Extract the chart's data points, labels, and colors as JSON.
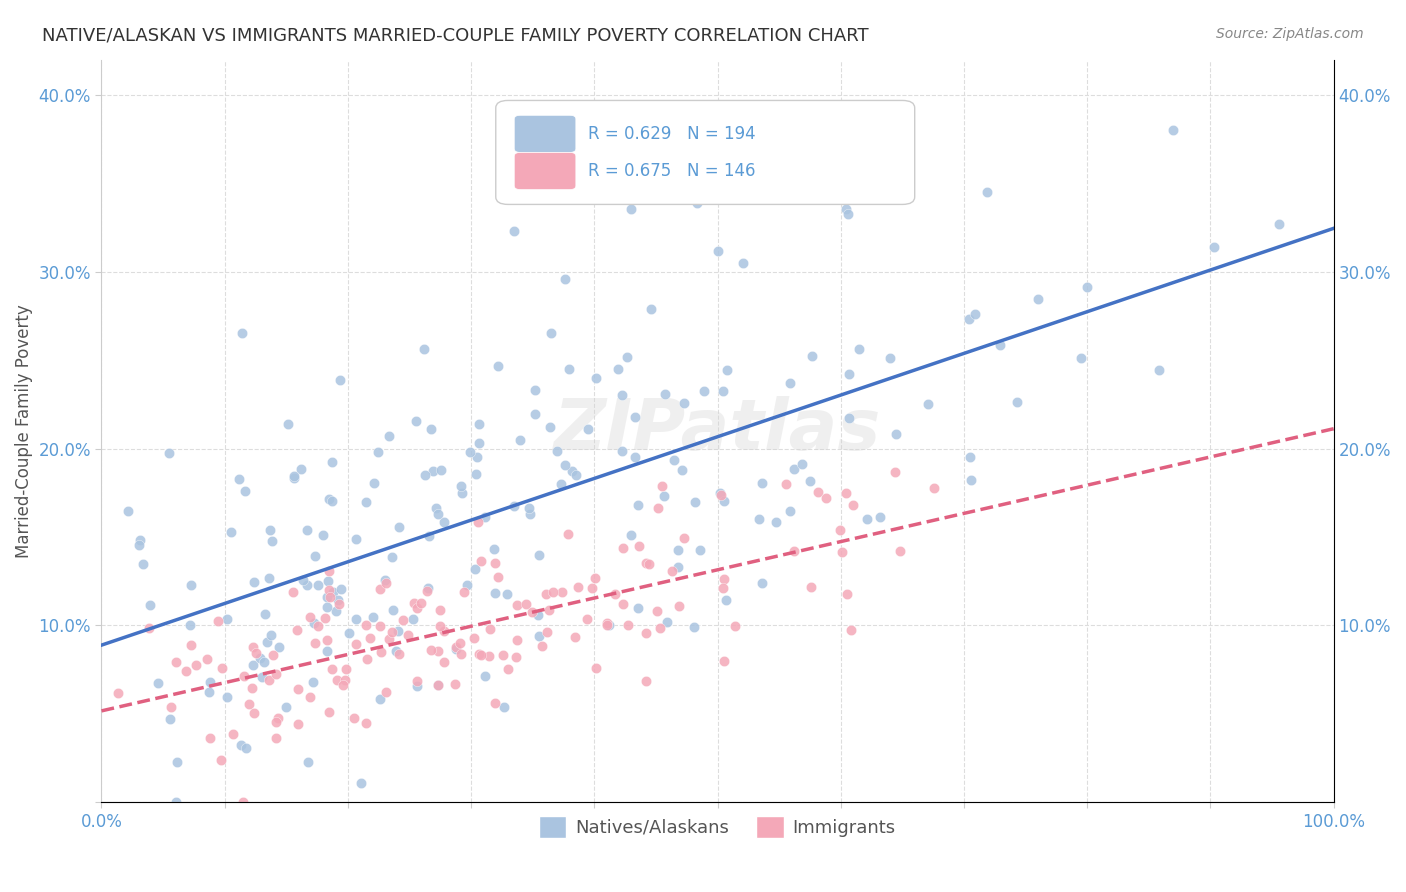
{
  "title": "NATIVE/ALASKAN VS IMMIGRANTS MARRIED-COUPLE FAMILY POVERTY CORRELATION CHART",
  "source": "Source: ZipAtlas.com",
  "xlabel": "",
  "ylabel": "Married-Couple Family Poverty",
  "xlim": [
    0,
    1
  ],
  "ylim": [
    0,
    0.42
  ],
  "x_ticks": [
    0.0,
    0.1,
    0.2,
    0.3,
    0.4,
    0.5,
    0.6,
    0.7,
    0.8,
    0.9,
    1.0
  ],
  "y_ticks": [
    0.0,
    0.1,
    0.2,
    0.3,
    0.4
  ],
  "x_tick_labels": [
    "0.0%",
    "",
    "",
    "",
    "",
    "",
    "",
    "",
    "",
    "",
    "100.0%"
  ],
  "y_tick_labels": [
    "",
    "10.0%",
    "20.0%",
    "30.0%",
    "40.0%"
  ],
  "R_native": 0.629,
  "N_native": 194,
  "R_immigrant": 0.675,
  "N_immigrant": 146,
  "native_color": "#aac4e0",
  "immigrant_color": "#f4a8b8",
  "native_line_color": "#4472c4",
  "immigrant_line_color": "#e06080",
  "native_line_style": "-",
  "immigrant_line_style": "--",
  "watermark": "ZIPatlas",
  "background_color": "#ffffff",
  "grid_color": "#dddddd",
  "legend_label_native": "Natives/Alaskans",
  "legend_label_immigrant": "Immigrants",
  "title_color": "#333333",
  "axis_color": "#5b9bd5",
  "seed": 42
}
